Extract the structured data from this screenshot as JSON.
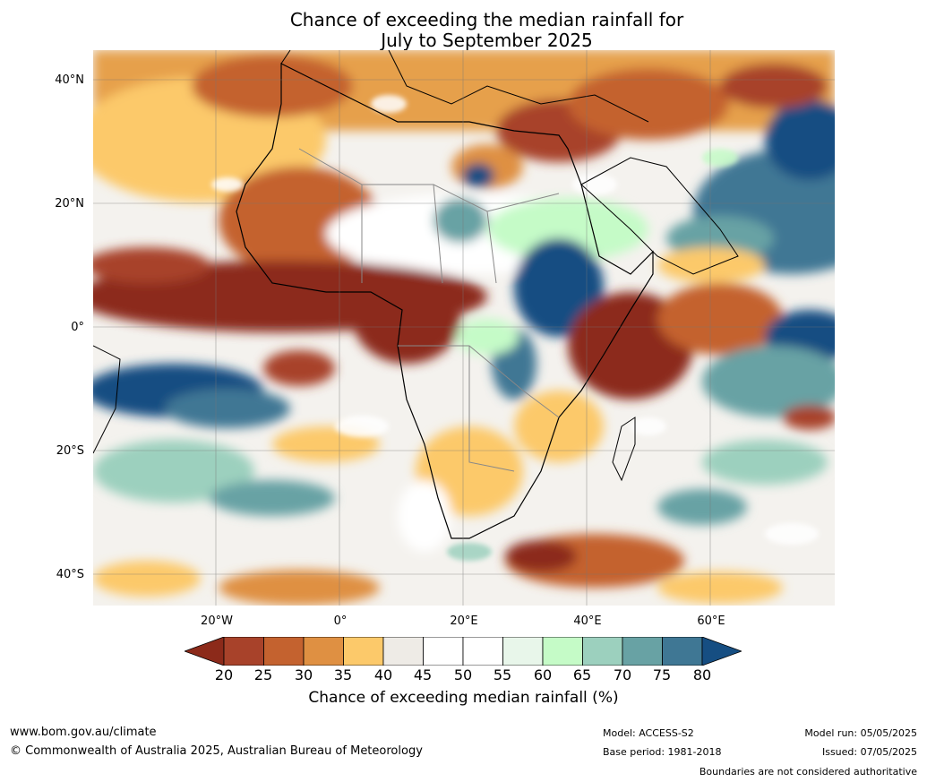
{
  "title_line1": "Chance of exceeding the median rainfall for",
  "title_line2": "July to September 2025",
  "lat_labels": [
    "40°N",
    "20°N",
    "0°",
    "20°S",
    "40°S"
  ],
  "lon_labels": [
    "20°W",
    "0°",
    "20°E",
    "40°E",
    "60°E"
  ],
  "colorbar": {
    "ticks": [
      "20",
      "25",
      "30",
      "35",
      "40",
      "45",
      "50",
      "55",
      "60",
      "65",
      "70",
      "75",
      "80"
    ],
    "colors": [
      "#8c2a1a",
      "#a8422a",
      "#c4622f",
      "#df9042",
      "#fcc96a",
      "#eeebe6",
      "#ffffff",
      "#ffffff",
      "#e8f6ea",
      "#c5fbc7",
      "#9cd0be",
      "#68a2a4",
      "#3f7794",
      "#164e82"
    ],
    "title": "Chance of exceeding median rainfall (%)"
  },
  "footer": {
    "url": "www.bom.gov.au/climate",
    "copyright": "© Commonwealth of Australia 2025, Australian Bureau of Meteorology",
    "model": "Model: ACCESS-S2",
    "base_period": "Base period: 1981-2018",
    "model_run": "Model run: 05/05/2025",
    "issued": "Issued: 07/05/2025",
    "disclaimer": "Boundaries are not considered authoritative"
  }
}
